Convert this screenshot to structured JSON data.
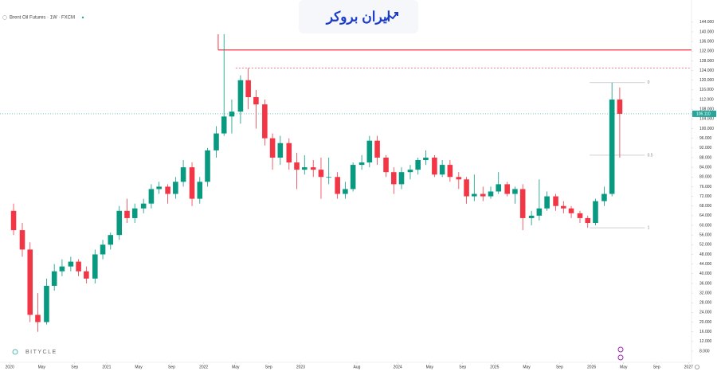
{
  "chart_data": {
    "type": "candlestick",
    "title": "Brent Oil Futures · 1W · FXCM",
    "brand": "ایران بروکر",
    "watermark": "BITYCLE",
    "up_color": "#089981",
    "down_color": "#f23645",
    "xlim": [
      2019.9,
      2027.03
    ],
    "ylim": [
      3.4,
      152.5
    ],
    "xticks": [
      {
        "value": 2020.0,
        "label": "2020"
      },
      {
        "value": 2020.33,
        "label": "May"
      },
      {
        "value": 2020.67,
        "label": "Sep"
      },
      {
        "value": 2021.0,
        "label": "2021"
      },
      {
        "value": 2021.33,
        "label": "May"
      },
      {
        "value": 2021.67,
        "label": "Sep"
      },
      {
        "value": 2022.0,
        "label": "2022"
      },
      {
        "value": 2022.33,
        "label": "May"
      },
      {
        "value": 2022.67,
        "label": "Sep"
      },
      {
        "value": 2023.0,
        "label": "2023"
      },
      {
        "value": 2023.58,
        "label": "Aug"
      },
      {
        "value": 2024.0,
        "label": "2024"
      },
      {
        "value": 2024.33,
        "label": "May"
      },
      {
        "value": 2024.67,
        "label": "Sep"
      },
      {
        "value": 2025.0,
        "label": "2025"
      },
      {
        "value": 2025.33,
        "label": "May"
      },
      {
        "value": 2025.67,
        "label": "Sep"
      },
      {
        "value": 2026.0,
        "label": "2026"
      },
      {
        "value": 2026.33,
        "label": "May"
      },
      {
        "value": 2026.67,
        "label": "Sep"
      },
      {
        "value": 2027.0,
        "label": "2027"
      }
    ],
    "yticks": [
      {
        "value": 144,
        "label": "144.000"
      },
      {
        "value": 140,
        "label": "140.000"
      },
      {
        "value": 136,
        "label": "136.000"
      },
      {
        "value": 132,
        "label": "132.000"
      },
      {
        "value": 128,
        "label": "128.000"
      },
      {
        "value": 124,
        "label": "124.000"
      },
      {
        "value": 120,
        "label": "120.000"
      },
      {
        "value": 116,
        "label": "116.000"
      },
      {
        "value": 112,
        "label": "112.000"
      },
      {
        "value": 108,
        "label": "108.000"
      },
      {
        "value": 104,
        "label": "104.000"
      },
      {
        "value": 100,
        "label": "100.000"
      },
      {
        "value": 96,
        "label": "96.000"
      },
      {
        "value": 92,
        "label": "92.000"
      },
      {
        "value": 88,
        "label": "88.000"
      },
      {
        "value": 84,
        "label": "84.000"
      },
      {
        "value": 80,
        "label": "80.000"
      },
      {
        "value": 76,
        "label": "76.000"
      },
      {
        "value": 72,
        "label": "72.000"
      },
      {
        "value": 68,
        "label": "68.000"
      },
      {
        "value": 64,
        "label": "64.000"
      },
      {
        "value": 60,
        "label": "60.000"
      },
      {
        "value": 56,
        "label": "56.000"
      },
      {
        "value": 52,
        "label": "52.000"
      },
      {
        "value": 48,
        "label": "48.000"
      },
      {
        "value": 44,
        "label": "44.000"
      },
      {
        "value": 40,
        "label": "40.000"
      },
      {
        "value": 36,
        "label": "36.000"
      },
      {
        "value": 32,
        "label": "32.000"
      },
      {
        "value": 28,
        "label": "28.000"
      },
      {
        "value": 24,
        "label": "24.000"
      },
      {
        "value": 20,
        "label": "20.000"
      },
      {
        "value": 16,
        "label": "16.000"
      },
      {
        "value": 12,
        "label": "12.000"
      },
      {
        "value": 8,
        "label": "8.000"
      }
    ],
    "last_price": {
      "value": 106.11,
      "label": "106.110",
      "color": "#26a69a"
    },
    "levels": [
      {
        "value": 132.5,
        "from": 2022.15,
        "color": "#f23645",
        "style": "solid"
      },
      {
        "value": 125,
        "from": 2022.33,
        "color": "#f23645",
        "style": "dashed"
      }
    ],
    "fib_levels": [
      {
        "level": 0,
        "value": 119,
        "from": 2025.98,
        "to": 2026.55
      },
      {
        "level": 0.5,
        "value": 89,
        "from": 2025.98,
        "to": 2026.55
      },
      {
        "level": 1,
        "value": 59,
        "from": 2025.98,
        "to": 2026.55
      }
    ],
    "x": [
      2020.04,
      2020.13,
      2020.21,
      2020.29,
      2020.38,
      2020.46,
      2020.54,
      2020.63,
      2020.71,
      2020.79,
      2020.88,
      2020.96,
      2021.04,
      2021.13,
      2021.21,
      2021.29,
      2021.38,
      2021.46,
      2021.54,
      2021.63,
      2021.71,
      2021.79,
      2021.88,
      2021.96,
      2022.04,
      2022.13,
      2022.21,
      2022.29,
      2022.38,
      2022.46,
      2022.54,
      2022.63,
      2022.71,
      2022.79,
      2022.88,
      2022.96,
      2023.04,
      2023.13,
      2023.21,
      2023.29,
      2023.38,
      2023.46,
      2023.54,
      2023.63,
      2023.71,
      2023.79,
      2023.88,
      2023.96,
      2024.04,
      2024.13,
      2024.21,
      2024.29,
      2024.38,
      2024.46,
      2024.54,
      2024.63,
      2024.71,
      2024.79,
      2024.88,
      2024.96,
      2025.04,
      2025.13,
      2025.21,
      2025.29,
      2025.38,
      2025.46,
      2025.54,
      2025.63,
      2025.71,
      2025.79,
      2025.88,
      2025.96,
      2026.04,
      2026.13,
      2026.21,
      2026.29
    ],
    "open": [
      66,
      58,
      50,
      23,
      20,
      35,
      41,
      43,
      45,
      41,
      38,
      48,
      52,
      56,
      66,
      63,
      67,
      69,
      75,
      76,
      73,
      78,
      84,
      71,
      78,
      91,
      98,
      105,
      107,
      120,
      113,
      110,
      96,
      88,
      94,
      86,
      83,
      84,
      83,
      80,
      80,
      73,
      75,
      85,
      86,
      95,
      88,
      82,
      77,
      82,
      83,
      87,
      88,
      81,
      85,
      80,
      79,
      72,
      73,
      72,
      74,
      77,
      73,
      75,
      63,
      64,
      67,
      72,
      68,
      67,
      65,
      63,
      61,
      70,
      73,
      112
    ],
    "high": [
      69,
      61,
      53,
      32,
      38,
      44,
      46,
      47,
      46,
      43,
      50,
      54,
      57,
      68,
      71,
      69,
      71,
      77,
      78,
      77,
      80,
      87,
      86,
      80,
      92,
      101,
      139,
      112,
      122,
      125,
      116,
      112,
      98,
      97,
      96,
      90,
      89,
      87,
      88,
      88,
      82,
      78,
      86,
      89,
      97,
      97,
      89,
      84,
      84,
      85,
      88,
      91,
      89,
      87,
      87,
      82,
      80,
      81,
      76,
      76,
      82,
      78,
      76,
      77,
      66,
      79,
      74,
      73,
      70,
      68,
      66,
      64,
      71,
      76,
      119,
      117
    ],
    "low": [
      56,
      47,
      20,
      16,
      19,
      33,
      39,
      41,
      39,
      36,
      36,
      46,
      50,
      54,
      61,
      61,
      65,
      67,
      73,
      69,
      71,
      76,
      68,
      69,
      76,
      88,
      97,
      98,
      102,
      108,
      100,
      93,
      83,
      85,
      83,
      75,
      81,
      80,
      71,
      77,
      71,
      71,
      74,
      83,
      84,
      85,
      80,
      73,
      75,
      79,
      81,
      85,
      80,
      80,
      78,
      75,
      69,
      70,
      70,
      71,
      73,
      72,
      69,
      58,
      60,
      62,
      66,
      66,
      65,
      63,
      61,
      59,
      60,
      68,
      72,
      88
    ],
    "close": [
      58,
      50,
      23,
      20,
      35,
      41,
      43,
      45,
      41,
      38,
      48,
      52,
      56,
      66,
      63,
      67,
      69,
      75,
      76,
      73,
      78,
      84,
      71,
      78,
      91,
      98,
      105,
      107,
      120,
      113,
      110,
      96,
      88,
      94,
      86,
      83,
      84,
      83,
      80,
      80,
      73,
      75,
      85,
      86,
      95,
      88,
      82,
      77,
      82,
      83,
      87,
      88,
      81,
      85,
      80,
      79,
      72,
      73,
      72,
      74,
      77,
      73,
      75,
      63,
      64,
      67,
      72,
      68,
      67,
      65,
      63,
      61,
      70,
      73,
      112,
      106.11
    ]
  }
}
